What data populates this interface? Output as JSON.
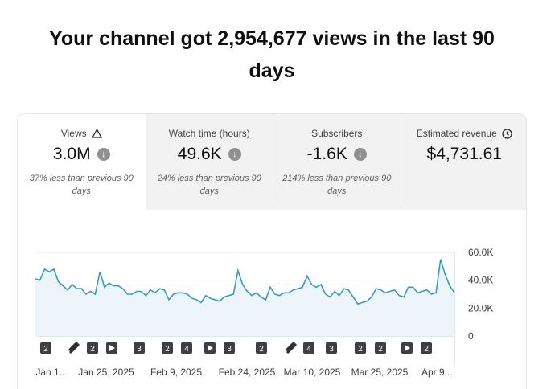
{
  "headline": "Your channel got 2,954,677 views in the last 90 days",
  "tabs": [
    {
      "label": "Views",
      "icon": "warning-icon",
      "value": "3.0M",
      "trend": "down",
      "note": "37% less than previous 90 days"
    },
    {
      "label": "Watch time (hours)",
      "value": "49.6K",
      "trend": "down",
      "note": "24% less than previous 90 days"
    },
    {
      "label": "Subscribers",
      "value": "-1.6K",
      "trend": "down",
      "note": "214% less than previous 90 days"
    },
    {
      "label": "Estimated revenue",
      "icon": "clock-icon",
      "value": "$4,731.61"
    }
  ],
  "chart_data": {
    "type": "area",
    "series": [
      {
        "values": [
          41000,
          40000,
          48000,
          46000,
          48000,
          39000,
          36000,
          33000,
          37000,
          34000,
          34000,
          30000,
          32000,
          30000,
          46000,
          35000,
          38000,
          36000,
          36000,
          34000,
          30000,
          30000,
          32000,
          32000,
          29000,
          33000,
          31000,
          34000,
          33000,
          26000,
          30000,
          31000,
          31000,
          30000,
          27000,
          26000,
          24000,
          29000,
          27000,
          26000,
          25000,
          28000,
          29000,
          30000,
          47000,
          37000,
          32000,
          29000,
          31000,
          28000,
          26000,
          35000,
          30000,
          29000,
          31000,
          31000,
          33000,
          34000,
          35000,
          43000,
          37000,
          35000,
          37000,
          30000,
          28000,
          32000,
          29000,
          34000,
          33000,
          28000,
          23000,
          24000,
          25000,
          28000,
          34000,
          33000,
          31000,
          32000,
          33000,
          29000,
          28000,
          35000,
          35000,
          31000,
          32000,
          33000,
          30000,
          31000,
          55000,
          44000,
          36000,
          31000
        ]
      }
    ],
    "y_ticks": [
      "60.0K",
      "40.0K",
      "20.0K",
      "0"
    ],
    "ylim": [
      0,
      60000
    ],
    "x_tick_labels": [
      "Jan 1...",
      "Jan 25, 2025",
      "Feb 9, 2025",
      "Feb 24, 2025",
      "Mar 10, 2025",
      "Mar 25, 2025",
      "Apr 9,..."
    ],
    "markers": [
      {
        "type": "count",
        "label": "2"
      },
      {
        "type": "short",
        "label": ""
      },
      {
        "type": "count",
        "label": "2"
      },
      {
        "type": "video",
        "label": ""
      },
      {
        "type": "count",
        "label": "3"
      },
      {
        "type": "count",
        "label": "2"
      },
      {
        "type": "count",
        "label": "4"
      },
      {
        "type": "video",
        "label": ""
      },
      {
        "type": "count",
        "label": "3"
      },
      {
        "type": "count",
        "label": "2"
      },
      {
        "type": "short",
        "label": ""
      },
      {
        "type": "count",
        "label": "4"
      },
      {
        "type": "count",
        "label": "3"
      },
      {
        "type": "count",
        "label": "2"
      },
      {
        "type": "count",
        "label": "2"
      },
      {
        "type": "video",
        "label": ""
      },
      {
        "type": "count",
        "label": "2"
      }
    ],
    "line_color": "#3a9bc0",
    "fill_color": "#eef5fa",
    "grid": true
  }
}
